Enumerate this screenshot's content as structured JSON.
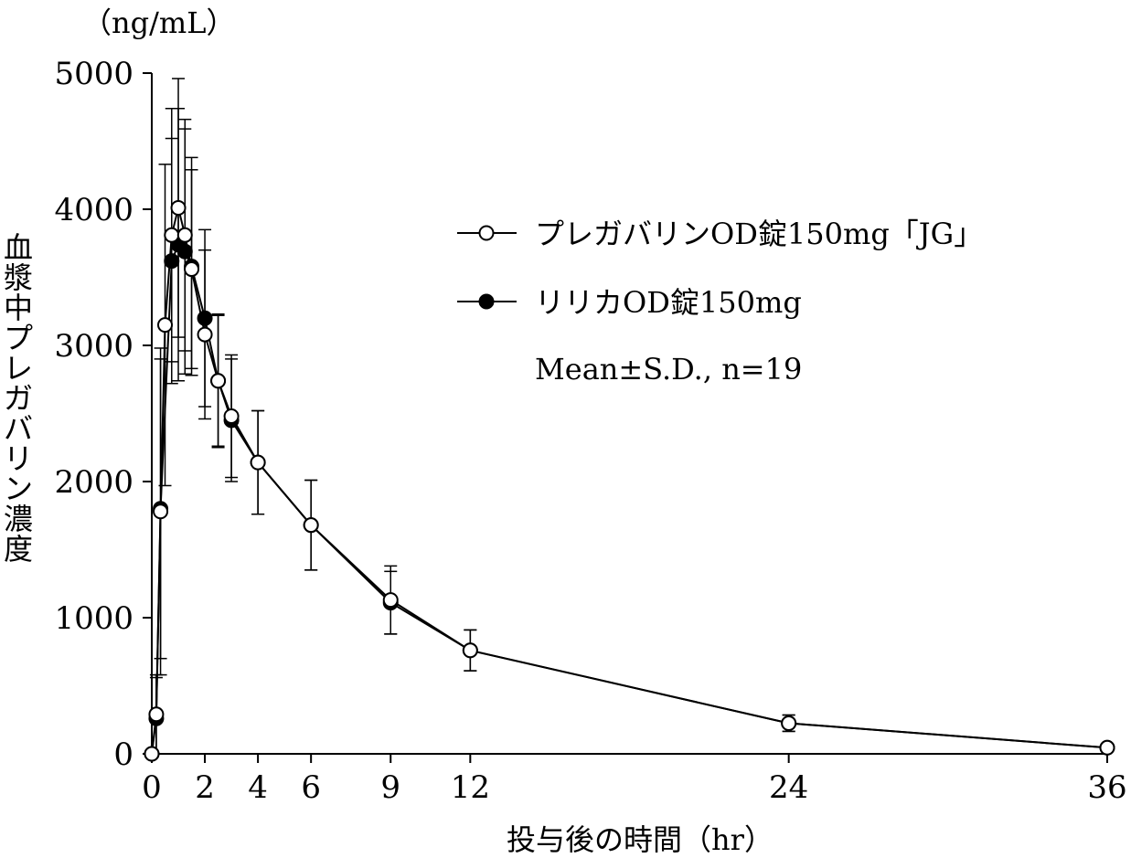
{
  "chart_data": {
    "type": "line",
    "title": "",
    "xlabel": "投与後の時間（hr）",
    "ylabel": "血漿中プレガバリン濃度",
    "y_unit": "（ng/mL）",
    "xlim": [
      0,
      36
    ],
    "ylim": [
      0,
      5000
    ],
    "x_ticks": [
      0,
      2,
      4,
      6,
      9,
      12,
      24,
      36
    ],
    "y_ticks": [
      0,
      1000,
      2000,
      3000,
      4000,
      5000
    ],
    "grid": false,
    "legend_position": "top-right",
    "note": "Mean±S.D., n=19",
    "series": [
      {
        "name": "リリカOD錠150mg",
        "marker": "filled-circle",
        "color": "#000000",
        "x": [
          0,
          0.17,
          0.33,
          0.75,
          1,
          1.25,
          1.5,
          2,
          2.5,
          3,
          4,
          6,
          9,
          12,
          24,
          36
        ],
        "y": [
          0,
          260,
          1800,
          3620,
          3740,
          3690,
          3580,
          3200,
          2740,
          2450,
          2140,
          1680,
          1110,
          760,
          225,
          45
        ],
        "sd": [
          0,
          300,
          1100,
          900,
          1000,
          900,
          800,
          650,
          490,
          450,
          380,
          330,
          230,
          150,
          60,
          20
        ]
      },
      {
        "name": "プレガバリンOD錠150mg「JG」",
        "marker": "open-circle",
        "color": "#000000",
        "x": [
          0,
          0.17,
          0.33,
          0.5,
          0.75,
          1,
          1.25,
          1.5,
          2,
          2.5,
          3,
          4,
          6,
          9,
          12,
          24,
          36
        ],
        "y": [
          0,
          290,
          1780,
          3150,
          3810,
          4010,
          3810,
          3560,
          3080,
          2740,
          2480,
          2140,
          1680,
          1130,
          760,
          225,
          45
        ],
        "sd": [
          0,
          290,
          1200,
          1180,
          930,
          950,
          850,
          730,
          620,
          480,
          450,
          380,
          330,
          250,
          150,
          60,
          20
        ]
      }
    ]
  }
}
